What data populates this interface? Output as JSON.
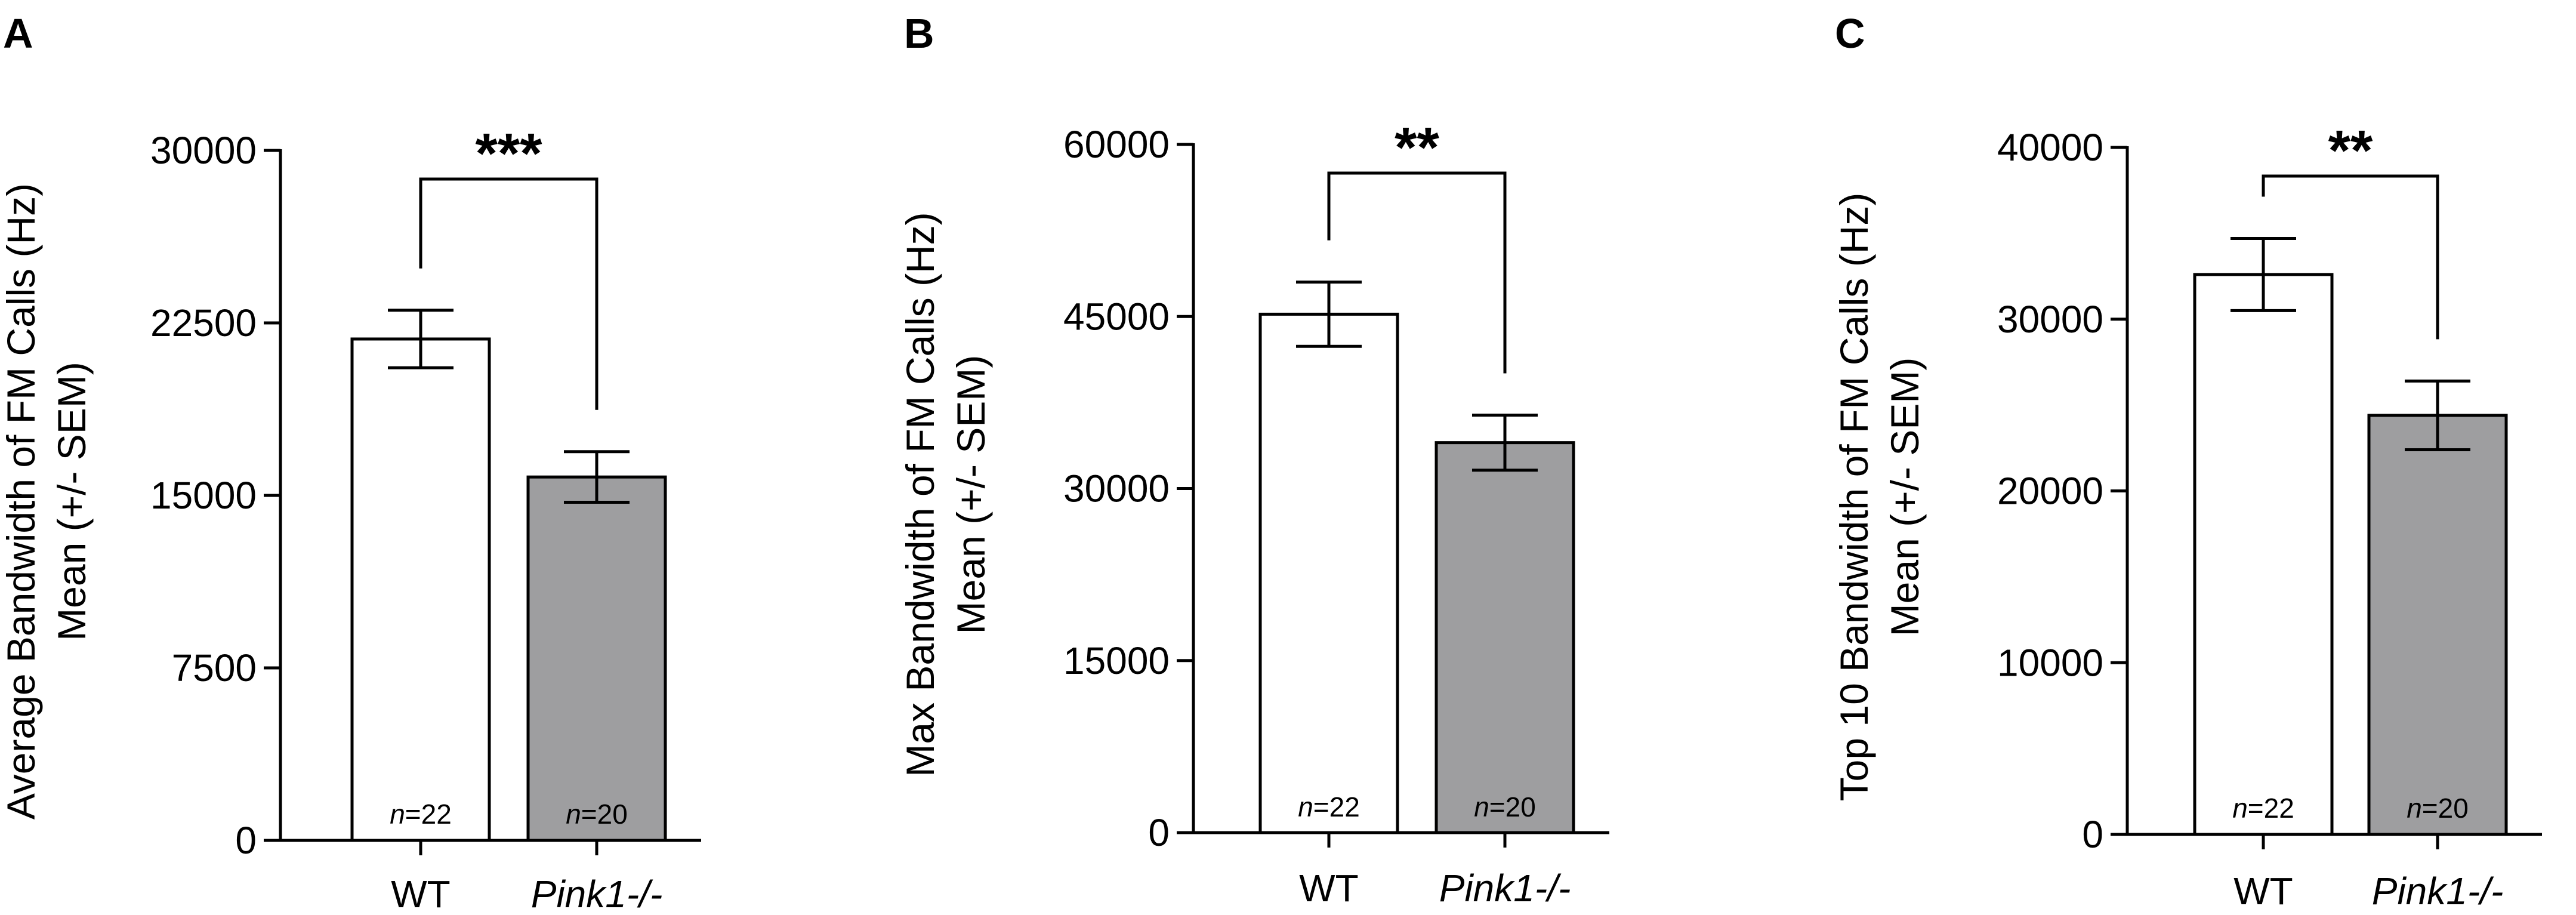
{
  "chart_data": [
    {
      "type": "bar",
      "panel": "A",
      "ylabel_lines": [
        "Average Bandwidth of FM Calls (Hz)",
        "Mean (+/- SEM)"
      ],
      "categories": [
        "WT",
        "Pink1-/-"
      ],
      "values": [
        21800,
        15800
      ],
      "errors": [
        1250,
        1100
      ],
      "n_labels": [
        {
          "prefix": "n",
          "value": "=22"
        },
        {
          "prefix": "n",
          "value": "=20"
        }
      ],
      "ylim": [
        0,
        30000
      ],
      "yticks": [
        0,
        7500,
        15000,
        22500,
        30000
      ],
      "significance": "***",
      "bar_colors": [
        "#ffffff",
        "#9e9ea0"
      ],
      "grid": false
    },
    {
      "type": "bar",
      "panel": "B",
      "ylabel_lines": [
        "Max Bandwidth of FM Calls (Hz)",
        "Mean (+/- SEM)"
      ],
      "categories": [
        "WT",
        "Pink1-/-"
      ],
      "values": [
        45200,
        34000
      ],
      "errors": [
        2800,
        2400
      ],
      "n_labels": [
        {
          "prefix": "n",
          "value": "=22"
        },
        {
          "prefix": "n",
          "value": "=20"
        }
      ],
      "ylim": [
        0,
        60000
      ],
      "yticks": [
        0,
        15000,
        30000,
        45000,
        60000
      ],
      "significance": "**",
      "bar_colors": [
        "#ffffff",
        "#9e9ea0"
      ],
      "grid": false
    },
    {
      "type": "bar",
      "panel": "C",
      "ylabel_lines": [
        "Top 10 Bandwidth of FM Calls (Hz)",
        "Mean (+/- SEM)"
      ],
      "categories": [
        "WT",
        "Pink1-/-"
      ],
      "values": [
        32600,
        24400
      ],
      "errors": [
        2100,
        2000
      ],
      "n_labels": [
        {
          "prefix": "n",
          "value": "=22"
        },
        {
          "prefix": "n",
          "value": "=20"
        }
      ],
      "ylim": [
        0,
        40000
      ],
      "yticks": [
        0,
        10000,
        20000,
        30000,
        40000
      ],
      "significance": "**",
      "bar_colors": [
        "#ffffff",
        "#9e9ea0"
      ],
      "grid": false
    }
  ]
}
